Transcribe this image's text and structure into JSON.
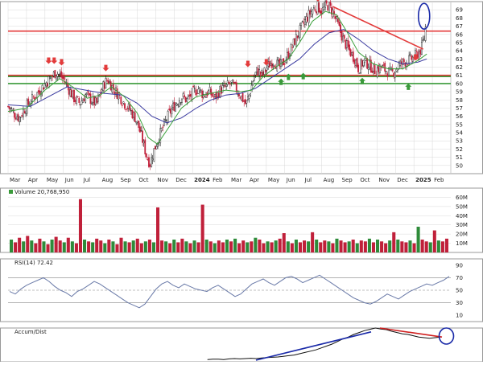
{
  "colors": {
    "up": "#2e8b3a",
    "down": "#c0203a",
    "resistance": "#e33b3b",
    "support": "#3a9a3a",
    "ma_short": "#3aa03a",
    "ma_long": "#3a3aa0",
    "rsi_line": "#6a7aa8",
    "rsi_fill": "#8fb6c8",
    "annotation_blue": "#1a2aa8",
    "annotation_red": "#d02020",
    "grid": "#d8d8d8",
    "text": "#222222"
  },
  "chart_data": [
    {
      "type": "candlestick",
      "panel": "price",
      "title": "",
      "ylim": [
        49,
        70
      ],
      "ytick_labels": [
        "50",
        "51",
        "52",
        "53",
        "54",
        "55",
        "56",
        "57",
        "58",
        "59",
        "60",
        "61",
        "62",
        "63",
        "64",
        "65",
        "66",
        "67",
        "68",
        "69"
      ],
      "ytick_values": [
        50,
        51,
        52,
        53,
        54,
        55,
        56,
        57,
        58,
        59,
        60,
        61,
        62,
        63,
        64,
        65,
        66,
        67,
        68,
        69
      ],
      "x_month_labels": [
        "Mar",
        "Apr",
        "May",
        "Jun",
        "Jul",
        "Aug",
        "Sep",
        "Oct",
        "Nov",
        "Dec",
        "2024",
        "Feb",
        "Mar",
        "Apr",
        "May",
        "Jun",
        "Jul",
        "Aug",
        "Sep",
        "Oct",
        "Nov",
        "Dec",
        "2025",
        "Feb"
      ],
      "x_month_bold": [
        false,
        false,
        false,
        false,
        false,
        false,
        false,
        false,
        false,
        false,
        true,
        false,
        false,
        false,
        false,
        false,
        false,
        false,
        false,
        false,
        false,
        false,
        true,
        false
      ],
      "months_span": 24,
      "close_path": [
        [
          0.0,
          57.2
        ],
        [
          0.3,
          56.4
        ],
        [
          0.6,
          55.8
        ],
        [
          0.9,
          56.9
        ],
        [
          1.2,
          57.8
        ],
        [
          1.5,
          58.6
        ],
        [
          1.8,
          59.4
        ],
        [
          2.1,
          60.2
        ],
        [
          2.4,
          60.9
        ],
        [
          2.6,
          61.4
        ],
        [
          2.9,
          60.8
        ],
        [
          3.1,
          60.2
        ],
        [
          3.3,
          59.3
        ],
        [
          3.6,
          58.1
        ],
        [
          3.9,
          57.6
        ],
        [
          4.2,
          58.6
        ],
        [
          4.5,
          58.0
        ],
        [
          4.8,
          57.5
        ],
        [
          5.0,
          58.8
        ],
        [
          5.2,
          59.9
        ],
        [
          5.4,
          60.5
        ],
        [
          5.7,
          59.4
        ],
        [
          6.0,
          58.6
        ],
        [
          6.3,
          57.6
        ],
        [
          6.6,
          56.8
        ],
        [
          6.9,
          55.8
        ],
        [
          7.1,
          54.6
        ],
        [
          7.3,
          53.0
        ],
        [
          7.5,
          51.2
        ],
        [
          7.7,
          50.2
        ],
        [
          7.9,
          51.8
        ],
        [
          8.2,
          53.6
        ],
        [
          8.5,
          55.2
        ],
        [
          8.8,
          56.6
        ],
        [
          9.1,
          57.6
        ],
        [
          9.4,
          58.4
        ],
        [
          9.7,
          58.0
        ],
        [
          10.0,
          58.8
        ],
        [
          10.3,
          59.4
        ],
        [
          10.6,
          58.6
        ],
        [
          10.9,
          59.0
        ],
        [
          11.2,
          58.2
        ],
        [
          11.5,
          59.2
        ],
        [
          11.8,
          59.6
        ],
        [
          12.1,
          60.0
        ],
        [
          12.4,
          59.2
        ],
        [
          12.7,
          58.2
        ],
        [
          12.9,
          57.4
        ],
        [
          13.1,
          58.8
        ],
        [
          13.3,
          60.6
        ],
        [
          13.5,
          61.6
        ],
        [
          13.8,
          61.0
        ],
        [
          14.1,
          62.2
        ],
        [
          14.4,
          62.8
        ],
        [
          14.7,
          62.0
        ],
        [
          15.0,
          62.8
        ],
        [
          15.3,
          64.0
        ],
        [
          15.6,
          65.5
        ],
        [
          15.9,
          66.8
        ],
        [
          16.2,
          68.0
        ],
        [
          16.5,
          69.0
        ],
        [
          16.8,
          69.4
        ],
        [
          17.0,
          68.8
        ],
        [
          17.3,
          69.6
        ],
        [
          17.6,
          68.8
        ],
        [
          17.9,
          67.0
        ],
        [
          18.2,
          65.2
        ],
        [
          18.5,
          64.0
        ],
        [
          18.8,
          63.0
        ],
        [
          19.0,
          61.8
        ],
        [
          19.3,
          62.8
        ],
        [
          19.6,
          62.2
        ],
        [
          19.9,
          61.6
        ],
        [
          20.2,
          62.0
        ],
        [
          20.5,
          61.6
        ],
        [
          20.8,
          61.2
        ],
        [
          21.1,
          62.0
        ],
        [
          21.4,
          62.6
        ],
        [
          21.7,
          62.8
        ],
        [
          22.0,
          63.2
        ],
        [
          22.2,
          63.6
        ],
        [
          22.4,
          64.2
        ],
        [
          22.6,
          66.0
        ],
        [
          22.7,
          68.6
        ]
      ],
      "ma_short_path": [
        [
          0.0,
          56.6
        ],
        [
          1.0,
          57.0
        ],
        [
          2.0,
          59.2
        ],
        [
          2.8,
          60.6
        ],
        [
          3.5,
          59.6
        ],
        [
          4.3,
          58.2
        ],
        [
          5.0,
          58.6
        ],
        [
          5.6,
          59.6
        ],
        [
          6.3,
          58.4
        ],
        [
          7.0,
          56.4
        ],
        [
          7.6,
          53.4
        ],
        [
          8.1,
          52.6
        ],
        [
          8.7,
          54.6
        ],
        [
          9.4,
          57.0
        ],
        [
          10.2,
          58.4
        ],
        [
          11.0,
          58.8
        ],
        [
          11.8,
          59.2
        ],
        [
          12.6,
          59.0
        ],
        [
          13.2,
          59.2
        ],
        [
          13.8,
          60.8
        ],
        [
          14.5,
          62.0
        ],
        [
          15.2,
          63.0
        ],
        [
          15.8,
          65.0
        ],
        [
          16.5,
          67.6
        ],
        [
          17.2,
          68.8
        ],
        [
          17.8,
          68.4
        ],
        [
          18.4,
          66.2
        ],
        [
          19.0,
          63.8
        ],
        [
          19.8,
          62.4
        ],
        [
          20.6,
          61.8
        ],
        [
          21.4,
          61.8
        ],
        [
          22.2,
          62.8
        ],
        [
          22.7,
          63.6
        ]
      ],
      "ma_long_path": [
        [
          0.0,
          57.4
        ],
        [
          1.2,
          57.2
        ],
        [
          2.2,
          58.4
        ],
        [
          3.2,
          59.6
        ],
        [
          4.2,
          59.2
        ],
        [
          5.2,
          58.8
        ],
        [
          6.2,
          58.6
        ],
        [
          7.0,
          57.6
        ],
        [
          7.8,
          56.0
        ],
        [
          8.6,
          55.2
        ],
        [
          9.4,
          55.8
        ],
        [
          10.2,
          57.0
        ],
        [
          11.0,
          58.0
        ],
        [
          11.8,
          58.6
        ],
        [
          12.6,
          58.8
        ],
        [
          13.4,
          59.4
        ],
        [
          14.2,
          60.6
        ],
        [
          15.0,
          61.8
        ],
        [
          15.8,
          63.0
        ],
        [
          16.6,
          64.8
        ],
        [
          17.4,
          66.2
        ],
        [
          18.2,
          66.6
        ],
        [
          19.0,
          65.4
        ],
        [
          19.8,
          64.0
        ],
        [
          20.6,
          63.0
        ],
        [
          21.4,
          62.4
        ],
        [
          22.2,
          62.6
        ],
        [
          22.7,
          63.0
        ]
      ],
      "horizontal_levels": [
        {
          "kind": "resistance",
          "y": 66.4
        },
        {
          "kind": "resistance",
          "y": 61.0
        },
        {
          "kind": "support",
          "y": 61.0
        },
        {
          "kind": "support",
          "y": 60.0
        }
      ],
      "trendline": {
        "x1": 17.6,
        "y1": 69.4,
        "x2": 22.5,
        "y2": 64.2
      },
      "down_arrows": [
        [
          2.2,
          62.4
        ],
        [
          2.5,
          62.4
        ],
        [
          2.9,
          62.2
        ],
        [
          5.3,
          61.5
        ],
        [
          13.0,
          62.0
        ],
        [
          14.0,
          62.2
        ],
        [
          16.8,
          70.0
        ],
        [
          22.1,
          62.8
        ]
      ],
      "up_arrows": [
        [
          14.8,
          60.6
        ],
        [
          15.2,
          61.2
        ],
        [
          16.0,
          61.3
        ],
        [
          19.2,
          60.7
        ],
        [
          21.7,
          60.0
        ]
      ],
      "circle": {
        "x": 22.55,
        "y": 69.0
      }
    },
    {
      "type": "bar",
      "panel": "volume",
      "title": "Volume 20,768,950",
      "ylim": [
        0,
        70
      ],
      "ytick_labels": [
        "60M",
        "50M",
        "40M",
        "30M",
        "20M",
        "10M"
      ],
      "ytick_values": [
        60,
        50,
        40,
        30,
        20,
        10
      ],
      "series": [
        {
          "values": [
            14,
            11,
            16,
            12,
            18,
            13,
            10,
            15,
            12,
            9,
            14,
            17,
            13,
            11,
            16,
            12,
            10,
            58,
            14,
            12,
            11,
            15,
            13,
            10,
            14,
            12,
            9,
            16,
            12,
            11,
            13,
            15,
            10,
            12,
            14,
            11,
            49,
            13,
            12,
            10,
            14,
            11,
            15,
            12,
            10,
            13,
            11,
            52,
            14,
            12,
            10,
            13,
            11,
            14,
            12,
            15,
            10,
            13,
            11,
            12,
            16,
            14,
            10,
            12,
            11,
            13,
            15,
            21,
            12,
            10,
            14,
            11,
            13,
            12,
            22,
            14,
            11,
            13,
            12,
            10,
            15,
            13,
            11,
            12,
            14,
            10,
            13,
            12,
            15,
            11,
            14,
            12,
            10,
            13,
            22,
            14,
            12,
            11,
            13,
            10,
            28,
            14,
            12,
            11,
            24,
            13,
            12,
            15
          ]
        }
      ]
    },
    {
      "type": "line",
      "panel": "rsi",
      "title": "RSI(14) 72.42",
      "ylim": [
        0,
        100
      ],
      "ytick_labels": [
        "90",
        "70",
        "50",
        "30",
        "10"
      ],
      "ytick_values": [
        90,
        70,
        50,
        30,
        10
      ],
      "reference_lines": [
        70,
        50,
        30
      ],
      "values": [
        48,
        44,
        52,
        58,
        62,
        66,
        70,
        64,
        56,
        50,
        46,
        40,
        48,
        52,
        58,
        64,
        60,
        54,
        48,
        42,
        36,
        30,
        26,
        22,
        28,
        40,
        52,
        60,
        64,
        58,
        54,
        60,
        56,
        52,
        50,
        48,
        54,
        58,
        52,
        46,
        40,
        44,
        52,
        60,
        64,
        68,
        62,
        58,
        64,
        70,
        72,
        68,
        62,
        66,
        70,
        74,
        68,
        62,
        56,
        50,
        44,
        38,
        34,
        30,
        28,
        32,
        38,
        44,
        40,
        36,
        42,
        48,
        52,
        56,
        60,
        58,
        62,
        66,
        72
      ]
    },
    {
      "type": "line",
      "panel": "accum_dist",
      "title": "Accum/Dist",
      "values": [
        0.02,
        0.03,
        0.03,
        0.02,
        0.04,
        0.05,
        0.04,
        0.05,
        0.06,
        0.05,
        0.07,
        0.08,
        0.09,
        0.1,
        0.12,
        0.14,
        0.16,
        0.2,
        0.24,
        0.28,
        0.32,
        0.38,
        0.44,
        0.5,
        0.58,
        0.66,
        0.72,
        0.8,
        0.86,
        0.92,
        0.96,
        1.0,
        0.97,
        0.95,
        0.9,
        0.86,
        0.82,
        0.8,
        0.76,
        0.72,
        0.7,
        0.68,
        0.7,
        0.72
      ],
      "trend_up": {
        "x1": 0.56,
        "y1": 0.0,
        "x2": 0.82,
        "y2": 0.88
      },
      "trend_down": {
        "x1": 0.84,
        "y1": 1.0,
        "x2": 0.98,
        "y2": 0.72
      }
    }
  ]
}
